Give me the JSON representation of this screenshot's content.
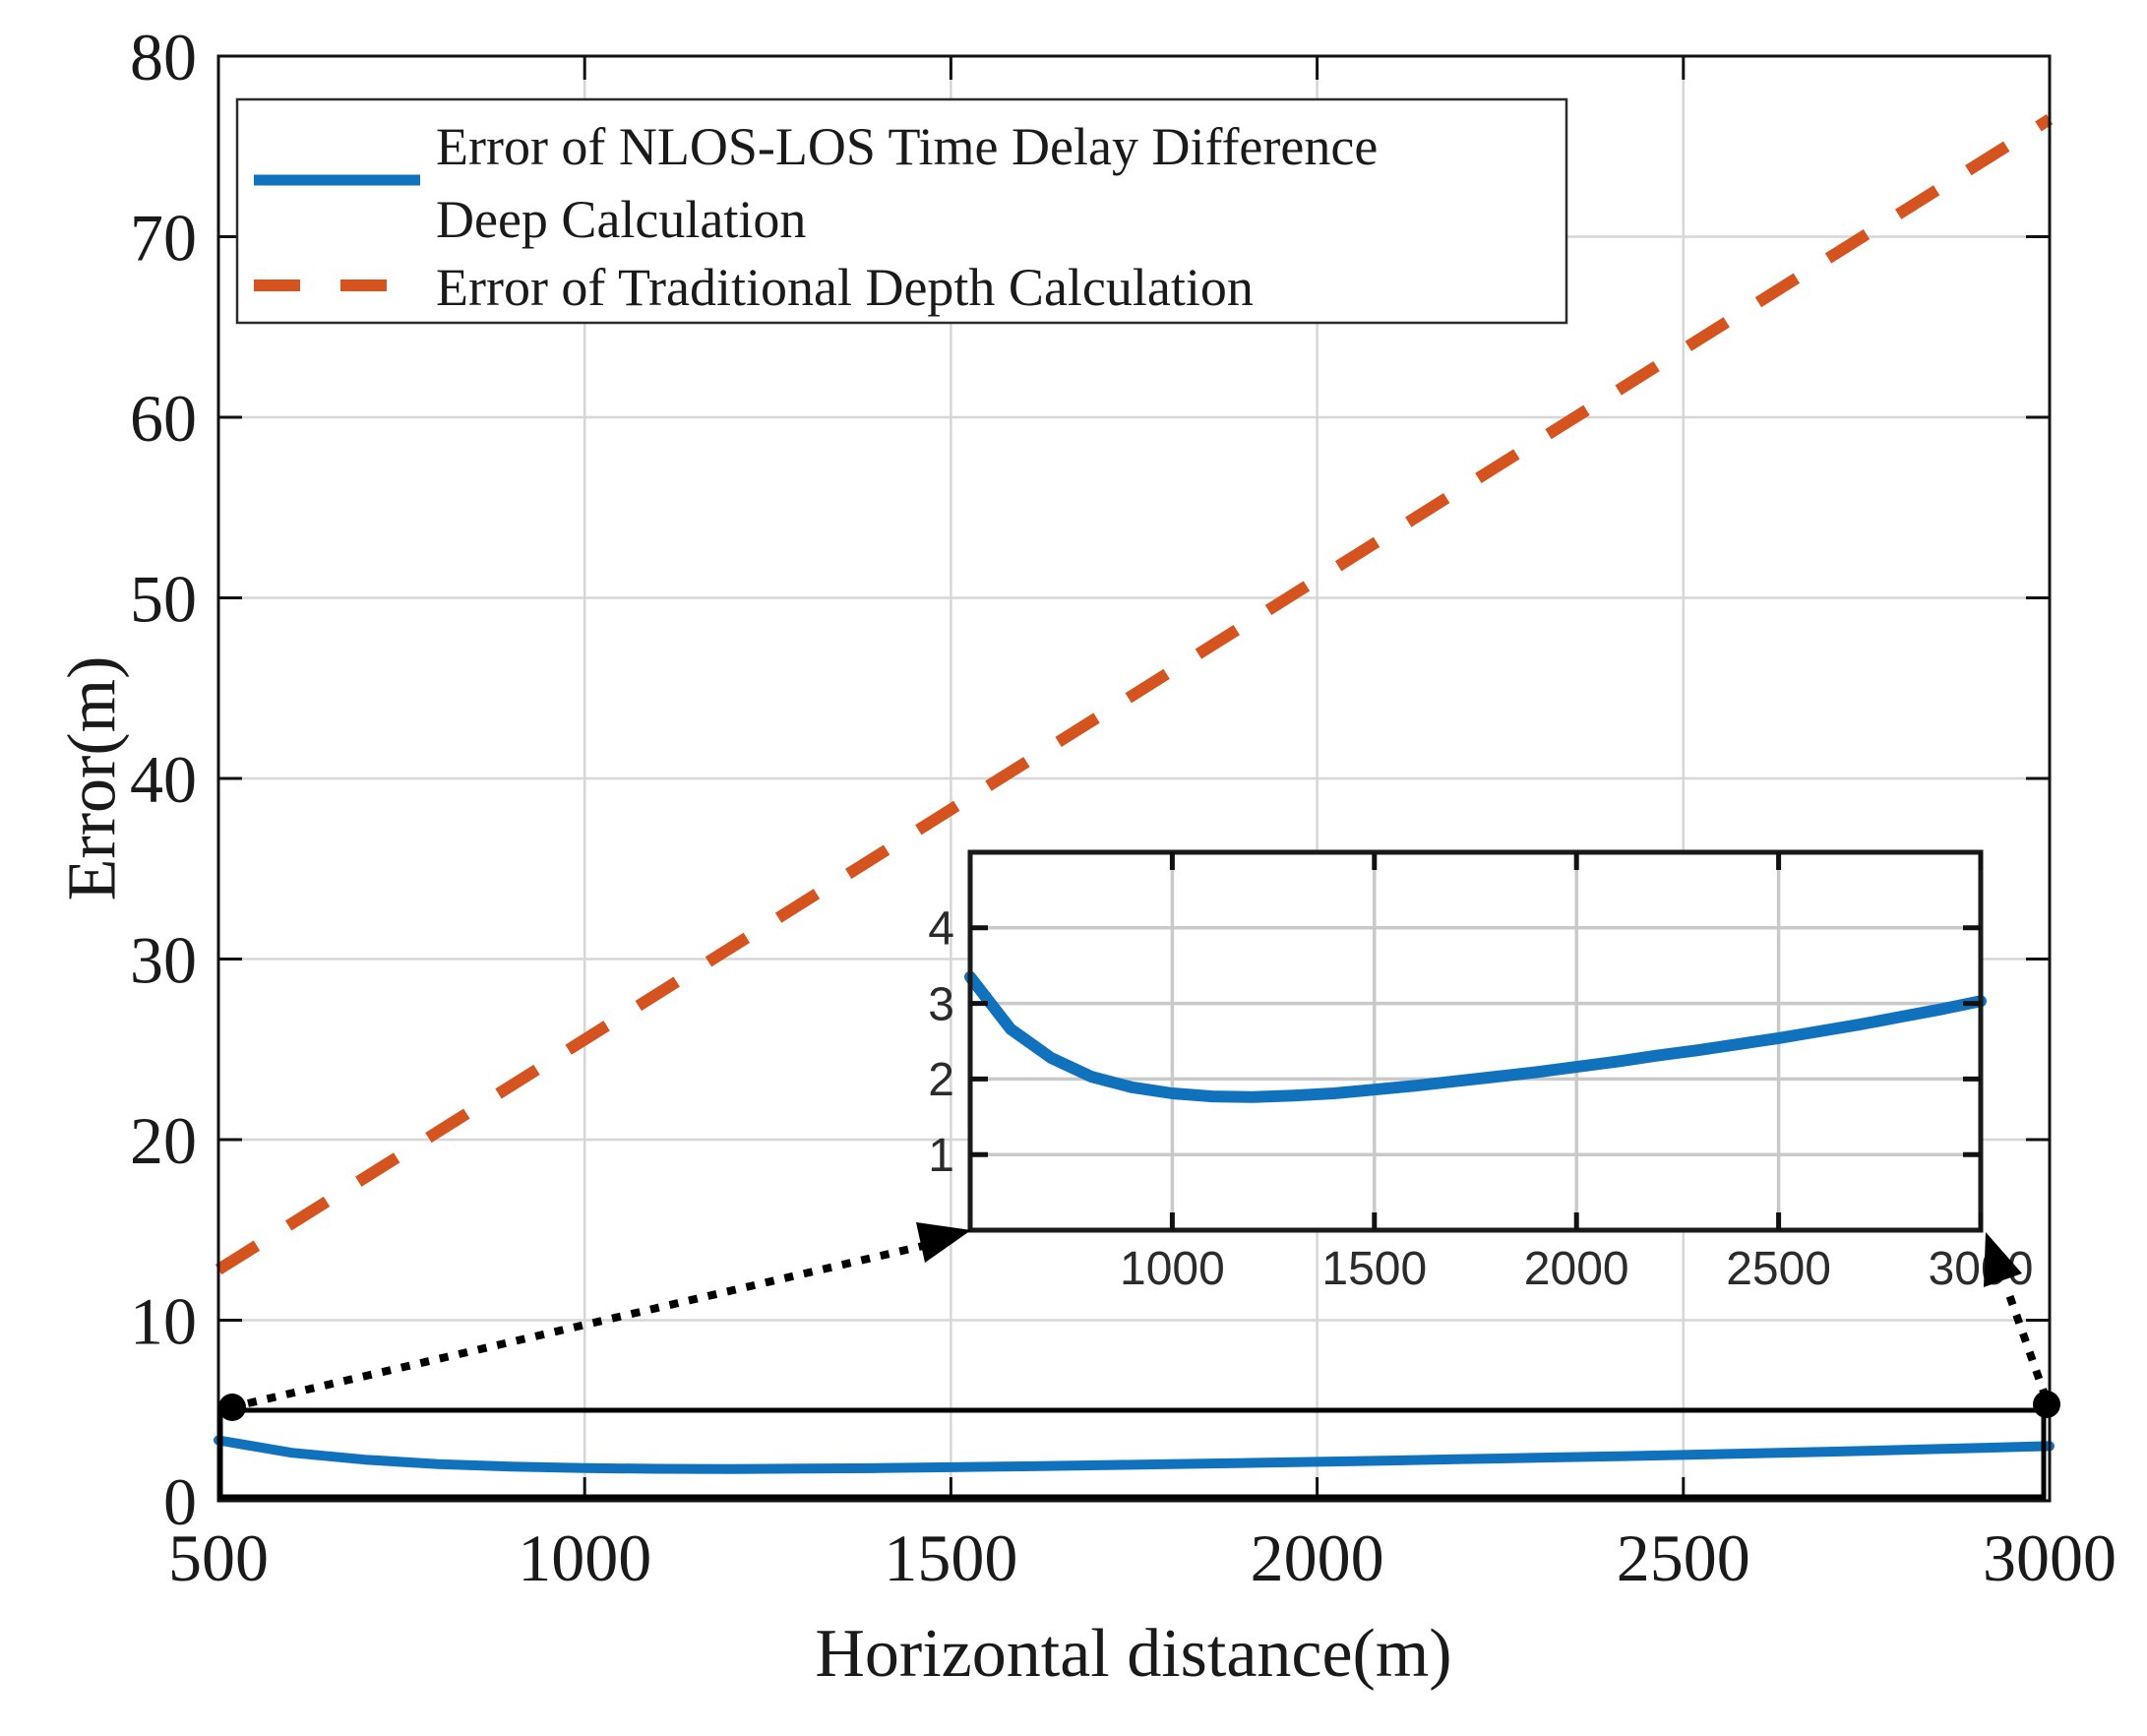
{
  "chart_data": {
    "type": "line",
    "title": "",
    "xlabel": "Horizontal distance(m)",
    "ylabel": "Error(m)",
    "xlim": [
      500,
      3000
    ],
    "ylim": [
      0,
      80
    ],
    "x_ticks": [
      500,
      1000,
      1500,
      2000,
      2500,
      3000
    ],
    "y_ticks": [
      0,
      10,
      20,
      30,
      40,
      50,
      60,
      70,
      80
    ],
    "grid": true,
    "legend_position": "top-left",
    "series": [
      {
        "id": "nlos_deep",
        "name": "Error of NLOS-LOS Time Delay Difference Deep Calculation",
        "color": "#1072BD",
        "style": "solid",
        "x": [
          500,
          600,
          700,
          800,
          900,
          1000,
          1100,
          1200,
          1300,
          1400,
          1500,
          1600,
          1700,
          1800,
          1900,
          2000,
          2100,
          2200,
          2300,
          2400,
          2500,
          2600,
          2700,
          2800,
          2900,
          3000
        ],
        "values": [
          3.35,
          2.66,
          2.28,
          2.03,
          1.89,
          1.81,
          1.77,
          1.76,
          1.78,
          1.81,
          1.86,
          1.91,
          1.97,
          2.03,
          2.09,
          2.16,
          2.23,
          2.31,
          2.38,
          2.46,
          2.54,
          2.63,
          2.72,
          2.82,
          2.92,
          3.03
        ]
      },
      {
        "id": "traditional",
        "name": "Error of Traditional Depth Calculation",
        "color": "#D5531E",
        "style": "dashed",
        "x": [
          500,
          3000
        ],
        "values": [
          12.8,
          76.5
        ]
      }
    ],
    "inset": {
      "description": "zoomed view of blue curve",
      "xlim": [
        500,
        3000
      ],
      "ylim": [
        0,
        5
      ],
      "x_ticks": [
        1000,
        1500,
        2000,
        2500,
        3000
      ],
      "y_ticks": [
        1,
        2,
        3,
        4
      ],
      "series_index": 0
    },
    "zoom_region": {
      "x": [
        500,
        3000
      ],
      "y": [
        0,
        5
      ]
    }
  },
  "legend": {
    "items": [
      {
        "lines": [
          "Error of NLOS-LOS Time Delay Difference",
          "Deep Calculation"
        ],
        "color": "#1072BD",
        "style": "solid"
      },
      {
        "lines": [
          "Error of Traditional Depth Calculation"
        ],
        "color": "#D5531E",
        "style": "dashed"
      }
    ]
  },
  "colors": {
    "blue_series": "#1072BD",
    "orange_series": "#D5531E",
    "grid": "#d6d6d6",
    "inset_grid": "#c9c9c9",
    "axis": "#111111",
    "annotation": "#000000"
  }
}
